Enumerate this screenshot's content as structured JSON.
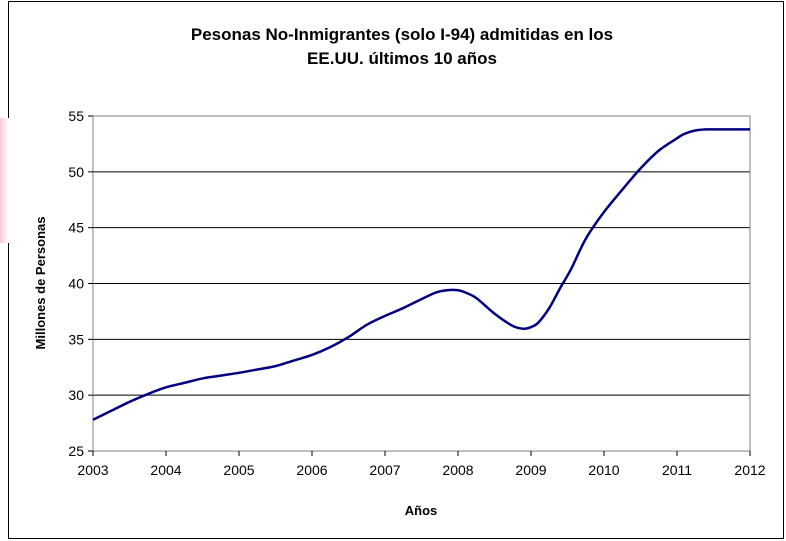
{
  "chart_data": {
    "type": "line",
    "title_lines": [
      "Pesonas No-Inmigrantes (solo I-94) admitidas en los",
      "EE.UU. últimos 10 años"
    ],
    "xlabel": "Años",
    "ylabel": "Millones de Personas",
    "xlim": [
      2003,
      2012
    ],
    "ylim": [
      25,
      55
    ],
    "x_ticks": [
      "2003",
      "2004",
      "2005",
      "2006",
      "2007",
      "2008",
      "2009",
      "2010",
      "2011",
      "2012"
    ],
    "y_ticks": [
      "25",
      "30",
      "35",
      "40",
      "45",
      "50",
      "55"
    ],
    "grid": "horizontal",
    "line_color": "#000080",
    "series": [
      {
        "x": [
          2003,
          2003.25,
          2003.5,
          2003.75,
          2004,
          2004.25,
          2004.5,
          2004.75,
          2005,
          2005.25,
          2005.5,
          2005.75,
          2006,
          2006.25,
          2006.5,
          2006.75,
          2007,
          2007.25,
          2007.5,
          2007.7,
          2007.85,
          2008,
          2008.1,
          2008.25,
          2008.5,
          2008.75,
          2008.9,
          2009,
          2009.1,
          2009.25,
          2009.4,
          2009.55,
          2009.75,
          2010,
          2010.25,
          2010.5,
          2010.75,
          2011,
          2011.1,
          2011.25,
          2011.4,
          2011.6,
          2011.8,
          2012
        ],
        "y": [
          27.8,
          28.6,
          29.4,
          30.1,
          30.7,
          31.1,
          31.5,
          31.75,
          32.0,
          32.3,
          32.6,
          33.1,
          33.6,
          34.3,
          35.2,
          36.3,
          37.1,
          37.8,
          38.6,
          39.2,
          39.4,
          39.4,
          39.2,
          38.7,
          37.3,
          36.2,
          35.95,
          36.1,
          36.5,
          37.8,
          39.6,
          41.3,
          44.0,
          46.4,
          48.4,
          50.3,
          51.9,
          53.0,
          53.4,
          53.7,
          53.8,
          53.8,
          53.8,
          53.8
        ]
      }
    ]
  }
}
